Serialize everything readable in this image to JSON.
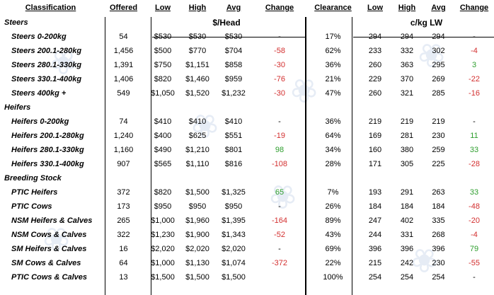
{
  "headers": [
    "Classification",
    "Offered",
    "Low",
    "High",
    "Avg",
    "Change",
    "Clearance",
    "Low",
    "High",
    "Avg",
    "Change"
  ],
  "units": {
    "head": "$/Head",
    "lw": "c/kg LW"
  },
  "sections": [
    {
      "name": "Steers",
      "rows": [
        {
          "cls": "Steers 0-200kg",
          "offered": "54",
          "low": "$530",
          "high": "$530",
          "avg": "$530",
          "change": "-",
          "clr": "17%",
          "low2": "294",
          "high2": "294",
          "avg2": "294",
          "change2": "-"
        },
        {
          "cls": "Steers 200.1-280kg",
          "offered": "1,456",
          "low": "$500",
          "high": "$770",
          "avg": "$704",
          "change": "-58",
          "clr": "62%",
          "low2": "233",
          "high2": "332",
          "avg2": "302",
          "change2": "-4"
        },
        {
          "cls": "Steers 280.1-330kg",
          "offered": "1,391",
          "low": "$750",
          "high": "$1,151",
          "avg": "$858",
          "change": "-30",
          "clr": "36%",
          "low2": "260",
          "high2": "363",
          "avg2": "295",
          "change2": "3"
        },
        {
          "cls": "Steers 330.1-400kg",
          "offered": "1,406",
          "low": "$820",
          "high": "$1,460",
          "avg": "$959",
          "change": "-76",
          "clr": "21%",
          "low2": "229",
          "high2": "370",
          "avg2": "269",
          "change2": "-22"
        },
        {
          "cls": "Steers 400kg +",
          "offered": "549",
          "low": "$1,050",
          "high": "$1,520",
          "avg": "$1,232",
          "change": "-30",
          "clr": "47%",
          "low2": "260",
          "high2": "321",
          "avg2": "285",
          "change2": "-16"
        }
      ]
    },
    {
      "name": "Heifers",
      "rows": [
        {
          "cls": "Heifers 0-200kg",
          "offered": "74",
          "low": "$410",
          "high": "$410",
          "avg": "$410",
          "change": "-",
          "clr": "36%",
          "low2": "219",
          "high2": "219",
          "avg2": "219",
          "change2": "-"
        },
        {
          "cls": "Heifers 200.1-280kg",
          "offered": "1,240",
          "low": "$400",
          "high": "$625",
          "avg": "$551",
          "change": "-19",
          "clr": "64%",
          "low2": "169",
          "high2": "281",
          "avg2": "230",
          "change2": "11"
        },
        {
          "cls": "Heifers 280.1-330kg",
          "offered": "1,160",
          "low": "$490",
          "high": "$1,210",
          "avg": "$801",
          "change": "98",
          "clr": "34%",
          "low2": "160",
          "high2": "380",
          "avg2": "259",
          "change2": "33"
        },
        {
          "cls": "Heifers 330.1-400kg",
          "offered": "907",
          "low": "$565",
          "high": "$1,110",
          "avg": "$816",
          "change": "-108",
          "clr": "28%",
          "low2": "171",
          "high2": "305",
          "avg2": "225",
          "change2": "-28"
        }
      ]
    },
    {
      "name": "Breeding Stock",
      "rows": [
        {
          "cls": "PTIC Heifers",
          "offered": "372",
          "low": "$820",
          "high": "$1,500",
          "avg": "$1,325",
          "change": "65",
          "clr": "7%",
          "low2": "193",
          "high2": "291",
          "avg2": "263",
          "change2": "33"
        },
        {
          "cls": "PTIC Cows",
          "offered": "173",
          "low": "$950",
          "high": "$950",
          "avg": "$950",
          "change": "-",
          "clr": "26%",
          "low2": "184",
          "high2": "184",
          "avg2": "184",
          "change2": "-48"
        },
        {
          "cls": "NSM Heifers & Calves",
          "offered": "265",
          "low": "$1,000",
          "high": "$1,960",
          "avg": "$1,395",
          "change": "-164",
          "clr": "89%",
          "low2": "247",
          "high2": "402",
          "avg2": "335",
          "change2": "-20"
        },
        {
          "cls": "NSM Cows & Calves",
          "offered": "322",
          "low": "$1,230",
          "high": "$1,900",
          "avg": "$1,343",
          "change": "-52",
          "clr": "43%",
          "low2": "244",
          "high2": "331",
          "avg2": "268",
          "change2": "-4"
        },
        {
          "cls": "SM Heifers & Calves",
          "offered": "16",
          "low": "$2,020",
          "high": "$2,020",
          "avg": "$2,020",
          "change": "-",
          "clr": "69%",
          "low2": "396",
          "high2": "396",
          "avg2": "396",
          "change2": "79"
        },
        {
          "cls": "SM Cows & Calves",
          "offered": "64",
          "low": "$1,000",
          "high": "$1,130",
          "avg": "$1,074",
          "change": "-372",
          "clr": "22%",
          "low2": "215",
          "high2": "242",
          "avg2": "230",
          "change2": "-55"
        },
        {
          "cls": "PTIC Cows & Calves",
          "offered": "13",
          "low": "$1,500",
          "high": "$1,500",
          "avg": "$1,500",
          "change": "",
          "clr": "100%",
          "low2": "254",
          "high2": "254",
          "avg2": "254",
          "change2": "-"
        }
      ]
    }
  ],
  "colors": {
    "negative": "#d32f2f",
    "positive": "#2e9e2e"
  }
}
